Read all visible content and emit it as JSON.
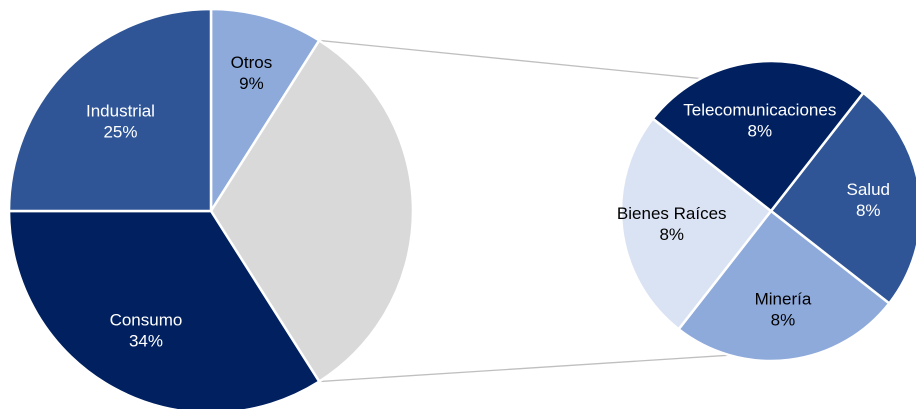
{
  "chart_data": {
    "type": "pie",
    "title": "",
    "main_pie": {
      "slices": [
        {
          "label": "Otros",
          "value": 9,
          "value_label": "9%",
          "color": "#8eaadb"
        },
        {
          "label": "",
          "value": 32,
          "value_label": "",
          "color": "#d9d9d9"
        },
        {
          "label": "Consumo",
          "value": 34,
          "value_label": "34%",
          "color": "#002060"
        },
        {
          "label": "Industrial",
          "value": 25,
          "value_label": "25%",
          "color": "#2f5597"
        }
      ]
    },
    "secondary_pie": {
      "slices": [
        {
          "label": "Salud",
          "value": 8,
          "value_label": "8%",
          "color": "#2f5597"
        },
        {
          "label": "Minería",
          "value": 8,
          "value_label": "8%",
          "color": "#8eaadb"
        },
        {
          "label": "Bienes Raíces",
          "value": 8,
          "value_label": "8%",
          "color": "#dae3f3"
        },
        {
          "label": "Telecomunicaciones",
          "value": 8,
          "value_label": "8%",
          "color": "#002060"
        }
      ]
    },
    "label_colors": {
      "light_text": "#ffffff",
      "dark_text": "#000000"
    },
    "connector_color": "#bfbfbf",
    "legend": "none"
  }
}
